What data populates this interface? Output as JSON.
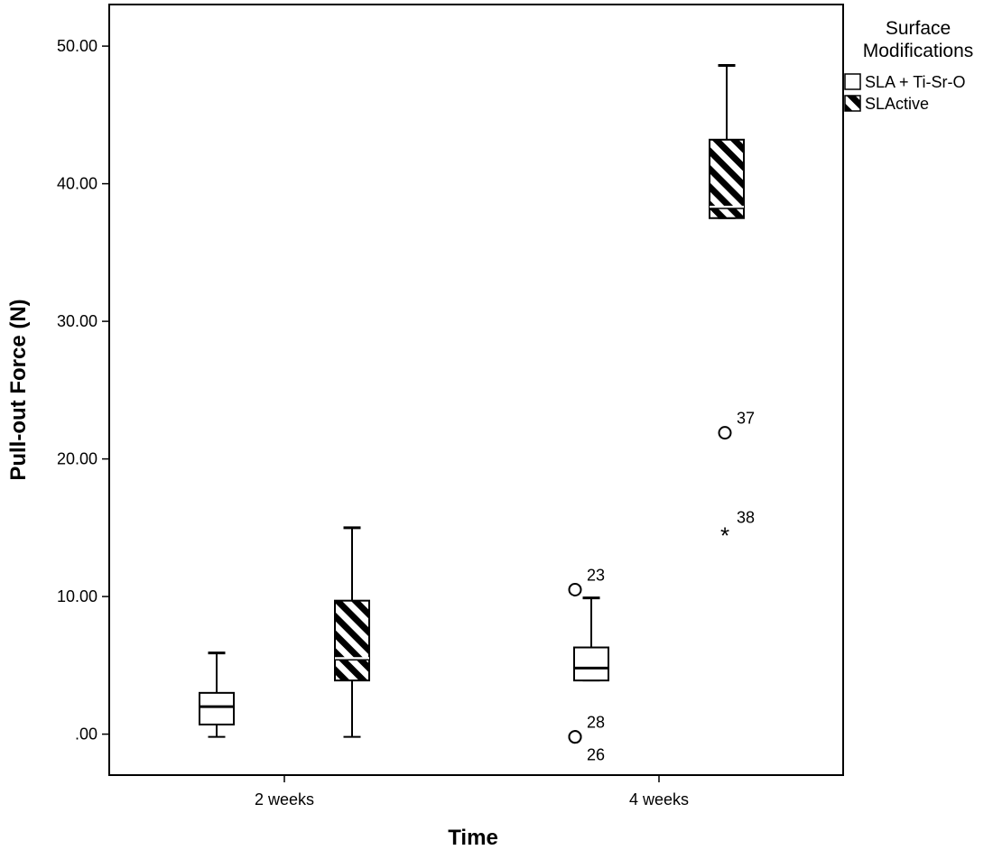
{
  "chart_data": {
    "type": "boxplot",
    "xlabel": "Time",
    "ylabel": "Pull-out Force (N)",
    "ylim": [
      -3,
      56
    ],
    "y_ticks": [
      0,
      10,
      20,
      30,
      40,
      50
    ],
    "y_tick_labels": [
      ".00",
      "10.00",
      "20.00",
      "30.00",
      "40.00",
      "50.00"
    ],
    "categories": [
      "2 weeks",
      "4 weeks"
    ],
    "legend": {
      "title_lines": [
        "Surface",
        "Modifications"
      ],
      "placement": "top-right, outside plot"
    },
    "series": [
      {
        "name": "SLA + Ti-Sr-O",
        "fill": "plain",
        "boxes": [
          {
            "category": "2 weeks",
            "min": -0.2,
            "q1": 0.7,
            "median": 2.0,
            "q3": 3.0,
            "max": 5.9,
            "outliers": []
          },
          {
            "category": "4 weeks",
            "min": 3.9,
            "q1": 3.9,
            "median": 4.8,
            "q3": 6.3,
            "max": 9.9,
            "outliers": [
              {
                "value": 10.5,
                "label": "23",
                "marker": "circle"
              },
              {
                "value": -0.2,
                "label": "28",
                "marker": "circle"
              },
              {
                "value": -0.2,
                "label": "26",
                "marker": "circle"
              }
            ]
          }
        ]
      },
      {
        "name": "SLActive",
        "fill": "hatched",
        "boxes": [
          {
            "category": "2 weeks",
            "min": -0.2,
            "q1": 3.9,
            "median": 5.5,
            "q3": 9.7,
            "max": 15.0,
            "outliers": []
          },
          {
            "category": "4 weeks",
            "min": 37.5,
            "q1": 37.5,
            "median": 38.3,
            "q3": 43.2,
            "max": 48.6,
            "outliers": [
              {
                "value": 21.9,
                "label": "37",
                "marker": "circle"
              },
              {
                "value": 14.7,
                "label": "38",
                "marker": "star"
              }
            ]
          }
        ]
      }
    ],
    "colors": {
      "frame": "#000000",
      "box_fill": "#ffffff",
      "hatch": "#000000",
      "background": "#ffffff"
    }
  }
}
